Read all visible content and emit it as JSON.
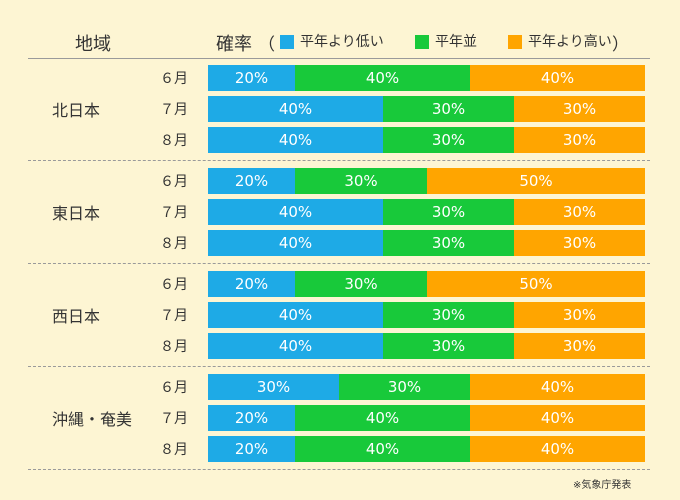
{
  "header": {
    "region_label": "地域",
    "probability_label": "確率",
    "paren_open": "（",
    "paren_close": "）"
  },
  "legend": [
    {
      "label": "平年より低い",
      "color": "#1eaae6"
    },
    {
      "label": "平年並",
      "color": "#18c93a"
    },
    {
      "label": "平年より高い",
      "color": "#ffa500"
    }
  ],
  "chart_data": {
    "type": "bar",
    "orientation": "horizontal",
    "stacked": true,
    "percent": true,
    "series_names": [
      "平年より低い",
      "平年並",
      "平年より高い"
    ],
    "groups": [
      {
        "region": "北日本",
        "rows": [
          {
            "month": "６月",
            "values": [
              20,
              40,
              40
            ],
            "labels": [
              "20%",
              "40%",
              "40%"
            ]
          },
          {
            "month": "７月",
            "values": [
              40,
              30,
              30
            ],
            "labels": [
              "40%",
              "30%",
              "30%"
            ]
          },
          {
            "month": "８月",
            "values": [
              40,
              30,
              30
            ],
            "labels": [
              "40%",
              "30%",
              "30%"
            ]
          }
        ]
      },
      {
        "region": "東日本",
        "rows": [
          {
            "month": "６月",
            "values": [
              20,
              30,
              50
            ],
            "labels": [
              "20%",
              "30%",
              "50%"
            ]
          },
          {
            "month": "７月",
            "values": [
              40,
              30,
              30
            ],
            "labels": [
              "40%",
              "30%",
              "30%"
            ]
          },
          {
            "month": "８月",
            "values": [
              40,
              30,
              30
            ],
            "labels": [
              "40%",
              "30%",
              "30%"
            ]
          }
        ]
      },
      {
        "region": "西日本",
        "rows": [
          {
            "month": "６月",
            "values": [
              20,
              30,
              50
            ],
            "labels": [
              "20%",
              "30%",
              "50%"
            ]
          },
          {
            "month": "７月",
            "values": [
              40,
              30,
              30
            ],
            "labels": [
              "40%",
              "30%",
              "30%"
            ]
          },
          {
            "month": "８月",
            "values": [
              40,
              30,
              30
            ],
            "labels": [
              "40%",
              "30%",
              "30%"
            ]
          }
        ]
      },
      {
        "region": "沖縄・奄美",
        "rows": [
          {
            "month": "６月",
            "values": [
              30,
              30,
              40
            ],
            "labels": [
              "30%",
              "30%",
              "40%"
            ]
          },
          {
            "month": "７月",
            "values": [
              20,
              40,
              40
            ],
            "labels": [
              "20%",
              "40%",
              "40%"
            ]
          },
          {
            "month": "８月",
            "values": [
              20,
              40,
              40
            ],
            "labels": [
              "20%",
              "40%",
              "40%"
            ]
          }
        ]
      }
    ]
  },
  "footer": {
    "source": "※気象庁発表"
  }
}
